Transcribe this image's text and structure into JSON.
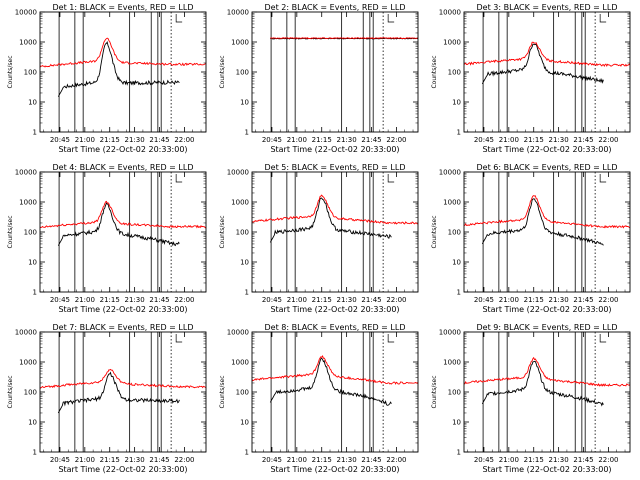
{
  "chart_data": [
    {
      "type": "line",
      "title": "Det 1: BLACK = Events, RED = LLD",
      "xlabel": "Start Time (22-Oct-02 20:33:00)",
      "ylabel": "Counts/sec",
      "yscale": "log",
      "ylim": [
        1,
        10000
      ],
      "x_ticks": [
        "20:45",
        "21:00",
        "21:15",
        "21:30",
        "21:45",
        "22:00"
      ],
      "y_ticks": [
        "1",
        "10",
        "100",
        "1000",
        "10000"
      ],
      "series": [
        {
          "color": "#000000",
          "kind": "events",
          "base": 30,
          "peak": 900,
          "tail": 45
        },
        {
          "color": "#ff0000",
          "kind": "lld",
          "base": 150,
          "peak": 1300,
          "tail": 180
        }
      ],
      "flare_time": "21:13"
    },
    {
      "type": "line",
      "title": "Det 2: BLACK = Events, RED = LLD",
      "xlabel": "Start Time (22-Oct-02 20:33:00)",
      "ylabel": "Counts/sec",
      "yscale": "log",
      "ylim": [
        1,
        10000
      ],
      "x_ticks": [
        "20:45",
        "21:00",
        "21:15",
        "21:30",
        "21:45",
        "22:00"
      ],
      "y_ticks": [
        "1",
        "10",
        "100",
        "1000",
        "10000"
      ],
      "series": [
        {
          "color": "#000000",
          "kind": "flat",
          "base": 1300,
          "peak": 1300,
          "tail": 1300
        },
        {
          "color": "#ff0000",
          "kind": "flat",
          "base": 1350,
          "peak": 1350,
          "tail": 1350
        }
      ],
      "flare_time": "21:13"
    },
    {
      "type": "line",
      "title": "Det 3: BLACK = Events, RED = LLD",
      "xlabel": "Start Time (22-Oct-02 20:33:00)",
      "ylabel": "Counts/sec",
      "yscale": "log",
      "ylim": [
        1,
        10000
      ],
      "x_ticks": [
        "20:45",
        "21:00",
        "21:15",
        "21:30",
        "21:45",
        "22:00"
      ],
      "y_ticks": [
        "1",
        "10",
        "100",
        "1000",
        "10000"
      ],
      "series": [
        {
          "color": "#000000",
          "kind": "events",
          "base": 80,
          "peak": 900,
          "tail": 50
        },
        {
          "color": "#ff0000",
          "kind": "lld",
          "base": 180,
          "peak": 1000,
          "tail": 170
        }
      ],
      "flare_time": "21:15"
    },
    {
      "type": "line",
      "title": "Det 4: BLACK = Events, RED = LLD",
      "xlabel": "Start Time (22-Oct-02 20:33:00)",
      "ylabel": "Counts/sec",
      "yscale": "log",
      "ylim": [
        1,
        10000
      ],
      "x_ticks": [
        "20:45",
        "21:00",
        "21:15",
        "21:30",
        "21:45",
        "22:00"
      ],
      "y_ticks": [
        "1",
        "10",
        "100",
        "1000",
        "10000"
      ],
      "series": [
        {
          "color": "#000000",
          "kind": "events",
          "base": 70,
          "peak": 800,
          "tail": 40
        },
        {
          "color": "#ff0000",
          "kind": "lld",
          "base": 140,
          "peak": 1000,
          "tail": 150
        }
      ],
      "flare_time": "21:13"
    },
    {
      "type": "line",
      "title": "Det 5: BLACK = Events, RED = LLD",
      "xlabel": "Start Time (22-Oct-02 20:33:00)",
      "ylabel": "Counts/sec",
      "yscale": "log",
      "ylim": [
        1,
        10000
      ],
      "x_ticks": [
        "20:45",
        "21:00",
        "21:15",
        "21:30",
        "21:45",
        "22:00"
      ],
      "y_ticks": [
        "1",
        "10",
        "100",
        "1000",
        "10000"
      ],
      "series": [
        {
          "color": "#000000",
          "kind": "events",
          "base": 90,
          "peak": 1400,
          "tail": 70
        },
        {
          "color": "#ff0000",
          "kind": "lld",
          "base": 220,
          "peak": 1600,
          "tail": 200
        }
      ],
      "flare_time": "21:15"
    },
    {
      "type": "line",
      "title": "Det 6: BLACK = Events, RED = LLD",
      "xlabel": "Start Time (22-Oct-02 20:33:00)",
      "ylabel": "Counts/sec",
      "yscale": "log",
      "ylim": [
        1,
        10000
      ],
      "x_ticks": [
        "20:45",
        "21:00",
        "21:15",
        "21:30",
        "21:45",
        "22:00"
      ],
      "y_ticks": [
        "1",
        "10",
        "100",
        "1000",
        "10000"
      ],
      "series": [
        {
          "color": "#000000",
          "kind": "events",
          "base": 80,
          "peak": 1300,
          "tail": 40
        },
        {
          "color": "#ff0000",
          "kind": "lld",
          "base": 170,
          "peak": 1600,
          "tail": 150
        }
      ],
      "flare_time": "21:15"
    },
    {
      "type": "line",
      "title": "Det 7: BLACK = Events, RED = LLD",
      "xlabel": "Start Time (22-Oct-02 20:33:00)",
      "ylabel": "Counts/sec",
      "yscale": "log",
      "ylim": [
        1,
        10000
      ],
      "x_ticks": [
        "20:45",
        "21:00",
        "21:15",
        "21:30",
        "21:45",
        "22:00"
      ],
      "y_ticks": [
        "1",
        "10",
        "100",
        "1000",
        "10000"
      ],
      "series": [
        {
          "color": "#000000",
          "kind": "events",
          "base": 40,
          "peak": 400,
          "tail": 50
        },
        {
          "color": "#ff0000",
          "kind": "lld",
          "base": 140,
          "peak": 550,
          "tail": 150
        }
      ],
      "flare_time": "21:15"
    },
    {
      "type": "line",
      "title": "Det 8: BLACK = Events, RED = LLD",
      "xlabel": "Start Time (22-Oct-02 20:33:00)",
      "ylabel": "Counts/sec",
      "yscale": "log",
      "ylim": [
        1,
        10000
      ],
      "x_ticks": [
        "20:45",
        "21:00",
        "21:15",
        "21:30",
        "21:45",
        "22:00"
      ],
      "y_ticks": [
        "1",
        "10",
        "100",
        "1000",
        "10000"
      ],
      "series": [
        {
          "color": "#000000",
          "kind": "events",
          "base": 90,
          "peak": 1300,
          "tail": 40
        },
        {
          "color": "#ff0000",
          "kind": "lld",
          "base": 250,
          "peak": 1500,
          "tail": 200
        }
      ],
      "flare_time": "21:15"
    },
    {
      "type": "line",
      "title": "Det 9: BLACK = Events, RED = LLD",
      "xlabel": "Start Time (22-Oct-02 20:33:00)",
      "ylabel": "Counts/sec",
      "yscale": "log",
      "ylim": [
        1,
        10000
      ],
      "x_ticks": [
        "20:45",
        "21:00",
        "21:15",
        "21:30",
        "21:45",
        "22:00"
      ],
      "y_ticks": [
        "1",
        "10",
        "100",
        "1000",
        "10000"
      ],
      "series": [
        {
          "color": "#000000",
          "kind": "events",
          "base": 80,
          "peak": 1000,
          "tail": 40
        },
        {
          "color": "#ff0000",
          "kind": "lld",
          "base": 200,
          "peak": 1300,
          "tail": 170
        }
      ],
      "flare_time": "21:15"
    }
  ]
}
